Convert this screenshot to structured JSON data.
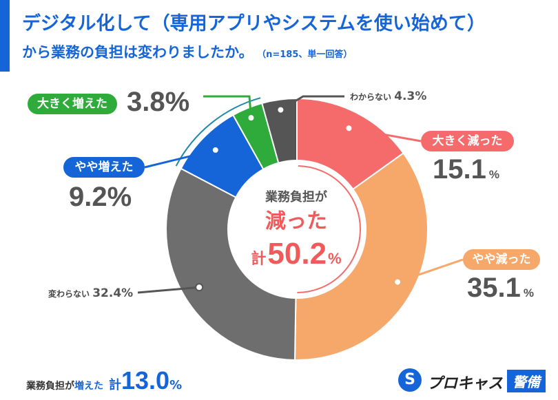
{
  "title": {
    "line1": "デジタル化して（専用アプリやシステムを使い始めて）",
    "line2": "から業務の負担は変わりましたか。",
    "note": "（n=185、単一回答）"
  },
  "chart_data": {
    "type": "pie",
    "categories": [
      "大きく減った",
      "やや減った",
      "変わらない",
      "やや増えた",
      "大きく増えた",
      "わからない"
    ],
    "values": [
      15.1,
      35.1,
      32.4,
      9.2,
      3.8,
      4.3
    ],
    "colors": [
      "#f56b6b",
      "#f5a86a",
      "#6e6e6e",
      "#1565d8",
      "#2fab3b",
      "#555555"
    ],
    "donut": true,
    "start_angle": "12 o'clock, clockwise"
  },
  "labels": {
    "large_decrease": {
      "name": "大きく減った",
      "value": "15.1",
      "unit": "%"
    },
    "slight_decrease": {
      "name": "やや減った",
      "value": "35.1",
      "unit": "%"
    },
    "no_change": {
      "name": "変わらない",
      "value": "32.4%"
    },
    "slight_increase": {
      "name": "やや増えた",
      "value": "9.2%"
    },
    "large_increase": {
      "name": "大きく増えた",
      "value": "3.8%"
    },
    "unknown": {
      "name": "わからない",
      "value": "4.3%"
    }
  },
  "center": {
    "line1": "業務負担が",
    "line2": "減った",
    "kei": "計",
    "value": "50.2",
    "unit": "%"
  },
  "bottom": {
    "label": "業務負担が",
    "label2": "増えた",
    "kei": "計",
    "value": "13.0",
    "unit": "%"
  },
  "logo": {
    "mark": "S",
    "text": "プロキャス",
    "box": "警備"
  }
}
